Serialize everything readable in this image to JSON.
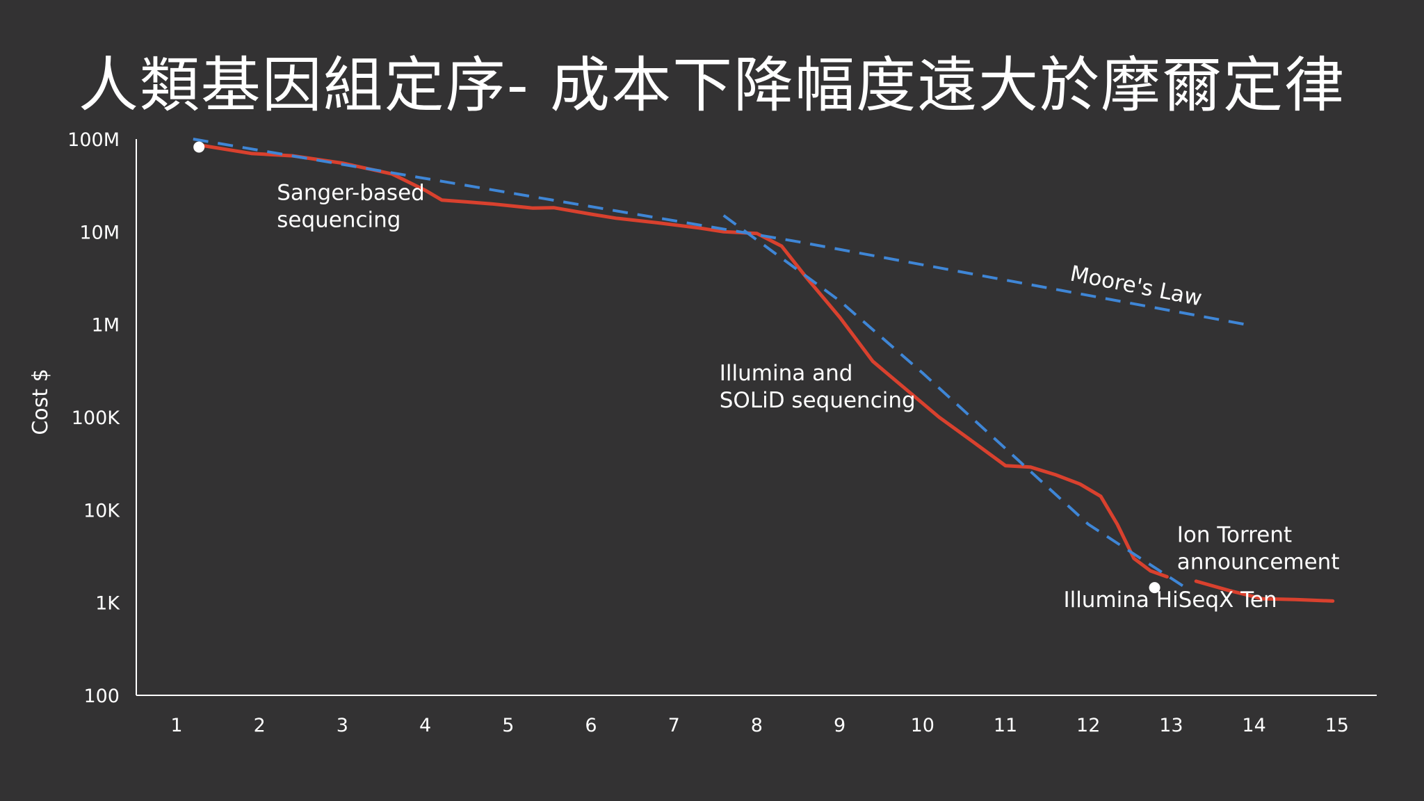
{
  "slide": {
    "title": "人類基因組定序- 成本下降幅度遠大於摩爾定律"
  },
  "chart_data": {
    "type": "line",
    "ylabel": "Cost $",
    "xlabel": "",
    "y_scale": "log",
    "ylim": [
      100,
      100000000
    ],
    "xlim": [
      0.5,
      15.5
    ],
    "x_ticks": [
      1,
      2,
      3,
      4,
      5,
      6,
      7,
      8,
      9,
      10,
      11,
      12,
      13,
      14,
      15
    ],
    "x_tick_labels": [
      "1",
      "2",
      "3",
      "4",
      "5",
      "6",
      "7",
      "8",
      "9",
      "10",
      "11",
      "12",
      "13",
      "14",
      "15"
    ],
    "y_ticks": [
      100,
      1000,
      10000,
      100000,
      1000000,
      10000000,
      100000000
    ],
    "y_tick_labels": [
      "100",
      "1K",
      "10K",
      "100K",
      "1M",
      "10M",
      "100M"
    ],
    "grid": false,
    "legend": "none",
    "series": [
      {
        "color": "#d9412e",
        "style": "solid",
        "points": [
          [
            1.25,
            87000000
          ],
          [
            1.9,
            70000000
          ],
          [
            2.4,
            66000000
          ],
          [
            3.0,
            55000000
          ],
          [
            3.6,
            42000000
          ],
          [
            4.0,
            28000000
          ],
          [
            4.2,
            22000000
          ],
          [
            4.5,
            21000000
          ],
          [
            4.8,
            20000000
          ],
          [
            5.3,
            18000000
          ],
          [
            5.55,
            18200000
          ],
          [
            6.0,
            15500000
          ],
          [
            6.3,
            14000000
          ],
          [
            6.8,
            12500000
          ],
          [
            7.3,
            11000000
          ],
          [
            7.6,
            10000000
          ],
          [
            8.0,
            9600000
          ],
          [
            8.3,
            7000000
          ],
          [
            8.6,
            3200000
          ],
          [
            9.0,
            1200000
          ],
          [
            9.4,
            400000
          ],
          [
            9.8,
            200000
          ],
          [
            10.2,
            100000
          ],
          [
            10.6,
            55000
          ],
          [
            11.0,
            30000
          ],
          [
            11.3,
            29000
          ],
          [
            11.6,
            24000
          ],
          [
            11.9,
            19000
          ],
          [
            12.15,
            14000
          ],
          [
            12.35,
            7000
          ],
          [
            12.55,
            3000
          ],
          [
            12.75,
            2200
          ],
          [
            12.95,
            1900
          ]
        ]
      },
      {
        "color": "#d9412e",
        "style": "solid",
        "points": [
          [
            13.3,
            1700
          ],
          [
            13.7,
            1350
          ],
          [
            14.1,
            1100
          ],
          [
            14.5,
            1080
          ],
          [
            14.95,
            1040
          ]
        ]
      },
      {
        "color": "#3f86d6",
        "style": "dashed",
        "points": [
          [
            1.2,
            100000000
          ],
          [
            8.5,
            7800000
          ],
          [
            13.9,
            1000000
          ]
        ]
      },
      {
        "color": "#3f86d6",
        "style": "dashed",
        "points": [
          [
            7.6,
            15000000
          ],
          [
            9.0,
            1800000
          ],
          [
            10.0,
            300000
          ],
          [
            11.0,
            46000
          ],
          [
            12.0,
            7000
          ],
          [
            13.2,
            1400
          ]
        ]
      }
    ],
    "markers": [
      {
        "x": 1.27,
        "y": 82000000,
        "color": "#ffffff"
      },
      {
        "x": 12.8,
        "y": 1450,
        "color": "#ffffff"
      }
    ],
    "annotations": [
      {
        "lines": [
          "Sanger-based",
          "sequencing"
        ],
        "x": 2.21,
        "y": 22000000
      },
      {
        "lines": [
          "Illumina and",
          "SOLiD sequencing"
        ],
        "x": 7.55,
        "y": 250000
      },
      {
        "lines": [
          "Ion Torrent",
          "announcement"
        ],
        "x": 13.07,
        "y": 4500
      },
      {
        "lines": [
          "Illumina HiSeqX Ten"
        ],
        "x": 11.7,
        "y": 900
      },
      {
        "lines": [
          "Moore's Law"
        ],
        "x": 11.77,
        "y": 3000000,
        "rotate": 11
      }
    ]
  }
}
